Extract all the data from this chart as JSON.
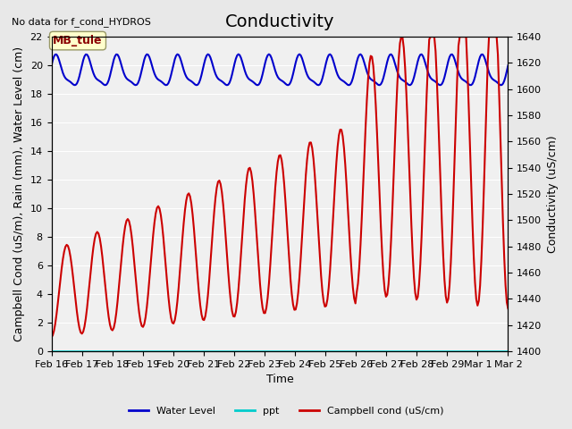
{
  "title": "Conductivity",
  "top_left_text": "No data for f_cond_HYDROS",
  "xlabel": "Time",
  "ylabel_left": "Campbell Cond (uS/m), Rain (mm), Water Level (cm)",
  "ylabel_right": "Conductivity (uS/cm)",
  "annotation_label": "MB_tule",
  "ylim_left": [
    0,
    22
  ],
  "ylim_right": [
    1400,
    1640
  ],
  "yticks_left": [
    0,
    2,
    4,
    6,
    8,
    10,
    12,
    14,
    16,
    18,
    20,
    22
  ],
  "yticks_right": [
    1400,
    1420,
    1440,
    1460,
    1480,
    1500,
    1520,
    1540,
    1560,
    1580,
    1600,
    1620,
    1640
  ],
  "xtick_labels": [
    "Feb 16",
    "Feb 17",
    "Feb 18",
    "Feb 19",
    "Feb 20",
    "Feb 21",
    "Feb 22",
    "Feb 23",
    "Feb 24",
    "Feb 25",
    "Feb 26",
    "Feb 27",
    "Feb 28",
    "Feb 29",
    "Mar 1",
    "Mar 2"
  ],
  "background_color": "#e8e8e8",
  "plot_bg_color": "#f0f0f0",
  "water_level_color": "#0000cc",
  "ppt_color": "#00cccc",
  "campbell_color": "#cc0000",
  "legend_entries": [
    "Water Level",
    "ppt",
    "Campbell cond (uS/cm)"
  ],
  "title_fontsize": 14,
  "axis_fontsize": 9,
  "tick_fontsize": 8
}
